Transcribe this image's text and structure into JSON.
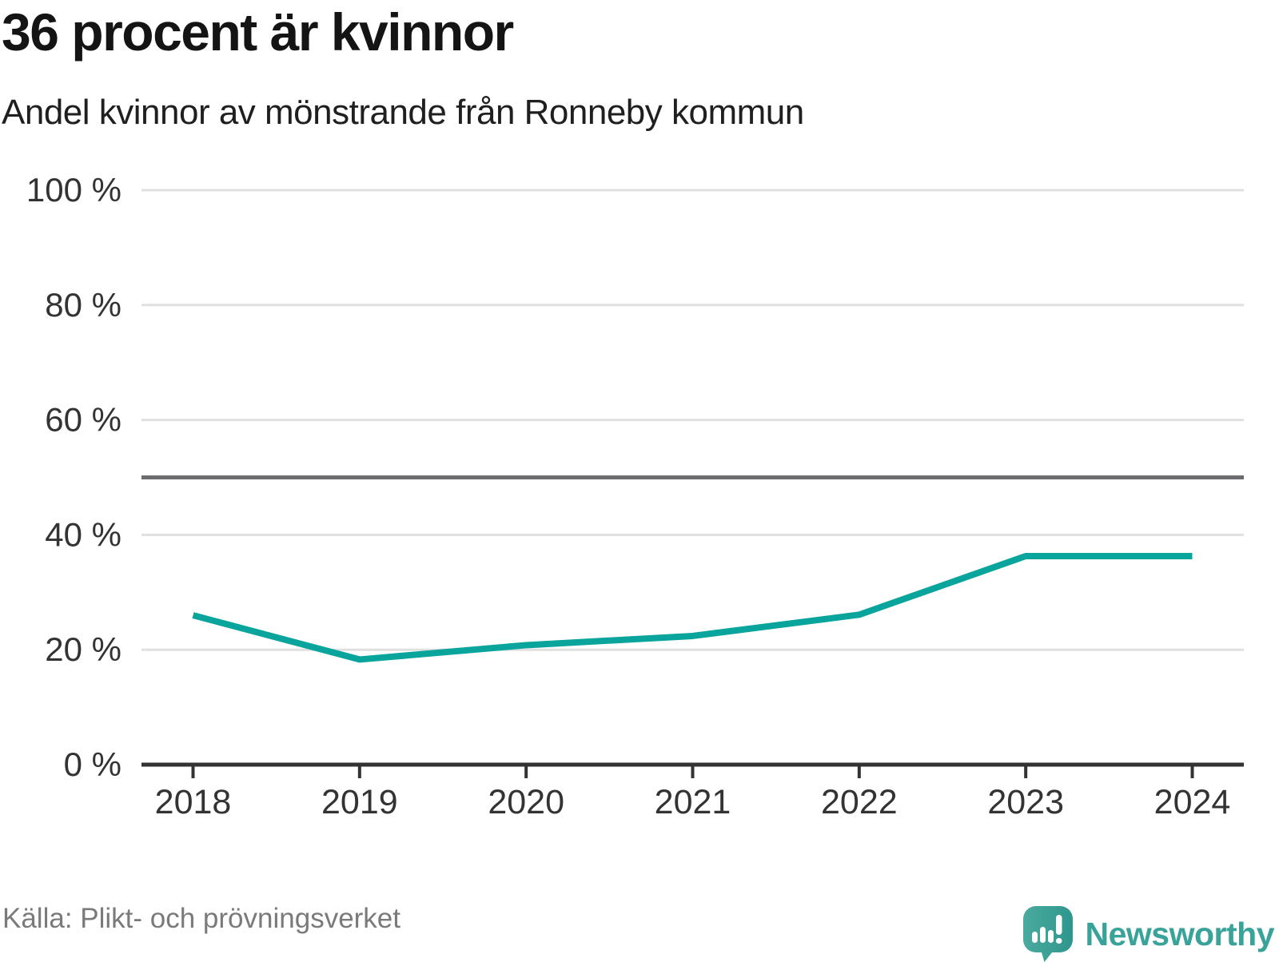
{
  "header": {
    "title": "36 procent är kvinnor",
    "subtitle": "Andel kvinnor av mönstrande från Ronneby kommun"
  },
  "chart_data": {
    "type": "line",
    "title": "36 procent är kvinnor",
    "subtitle": "Andel kvinnor av mönstrande från Ronneby kommun",
    "categories": [
      "2018",
      "2019",
      "2020",
      "2021",
      "2022",
      "2023",
      "2024"
    ],
    "series": [
      {
        "name": "Andel kvinnor av mönstrande",
        "values": [
          26,
          18.3,
          20.8,
          22.4,
          26.1,
          36.3,
          36.3
        ]
      }
    ],
    "xlabel": "",
    "ylabel": "",
    "ylim": [
      0,
      100
    ],
    "yticks": [
      0,
      20,
      40,
      60,
      80,
      100
    ],
    "ytick_labels": [
      "0 %",
      "20 %",
      "40 %",
      "60 %",
      "80 %",
      "100 %"
    ],
    "grid": "horizontal",
    "legend": "none",
    "reference_line": {
      "value": 50
    }
  },
  "colors": {
    "line": "#09a49b",
    "grid": "#e0e0e0",
    "axis": "#333333",
    "reference": "#6b6b70",
    "tick_text": "#333333",
    "brand_teal": "#39a39a",
    "logo_fill_light": "#4aab9f",
    "logo_fill_dark": "#2f968d"
  },
  "footer": {
    "source": "Källa: Plikt- och prövningsverket",
    "brand": "Newsworthy"
  }
}
